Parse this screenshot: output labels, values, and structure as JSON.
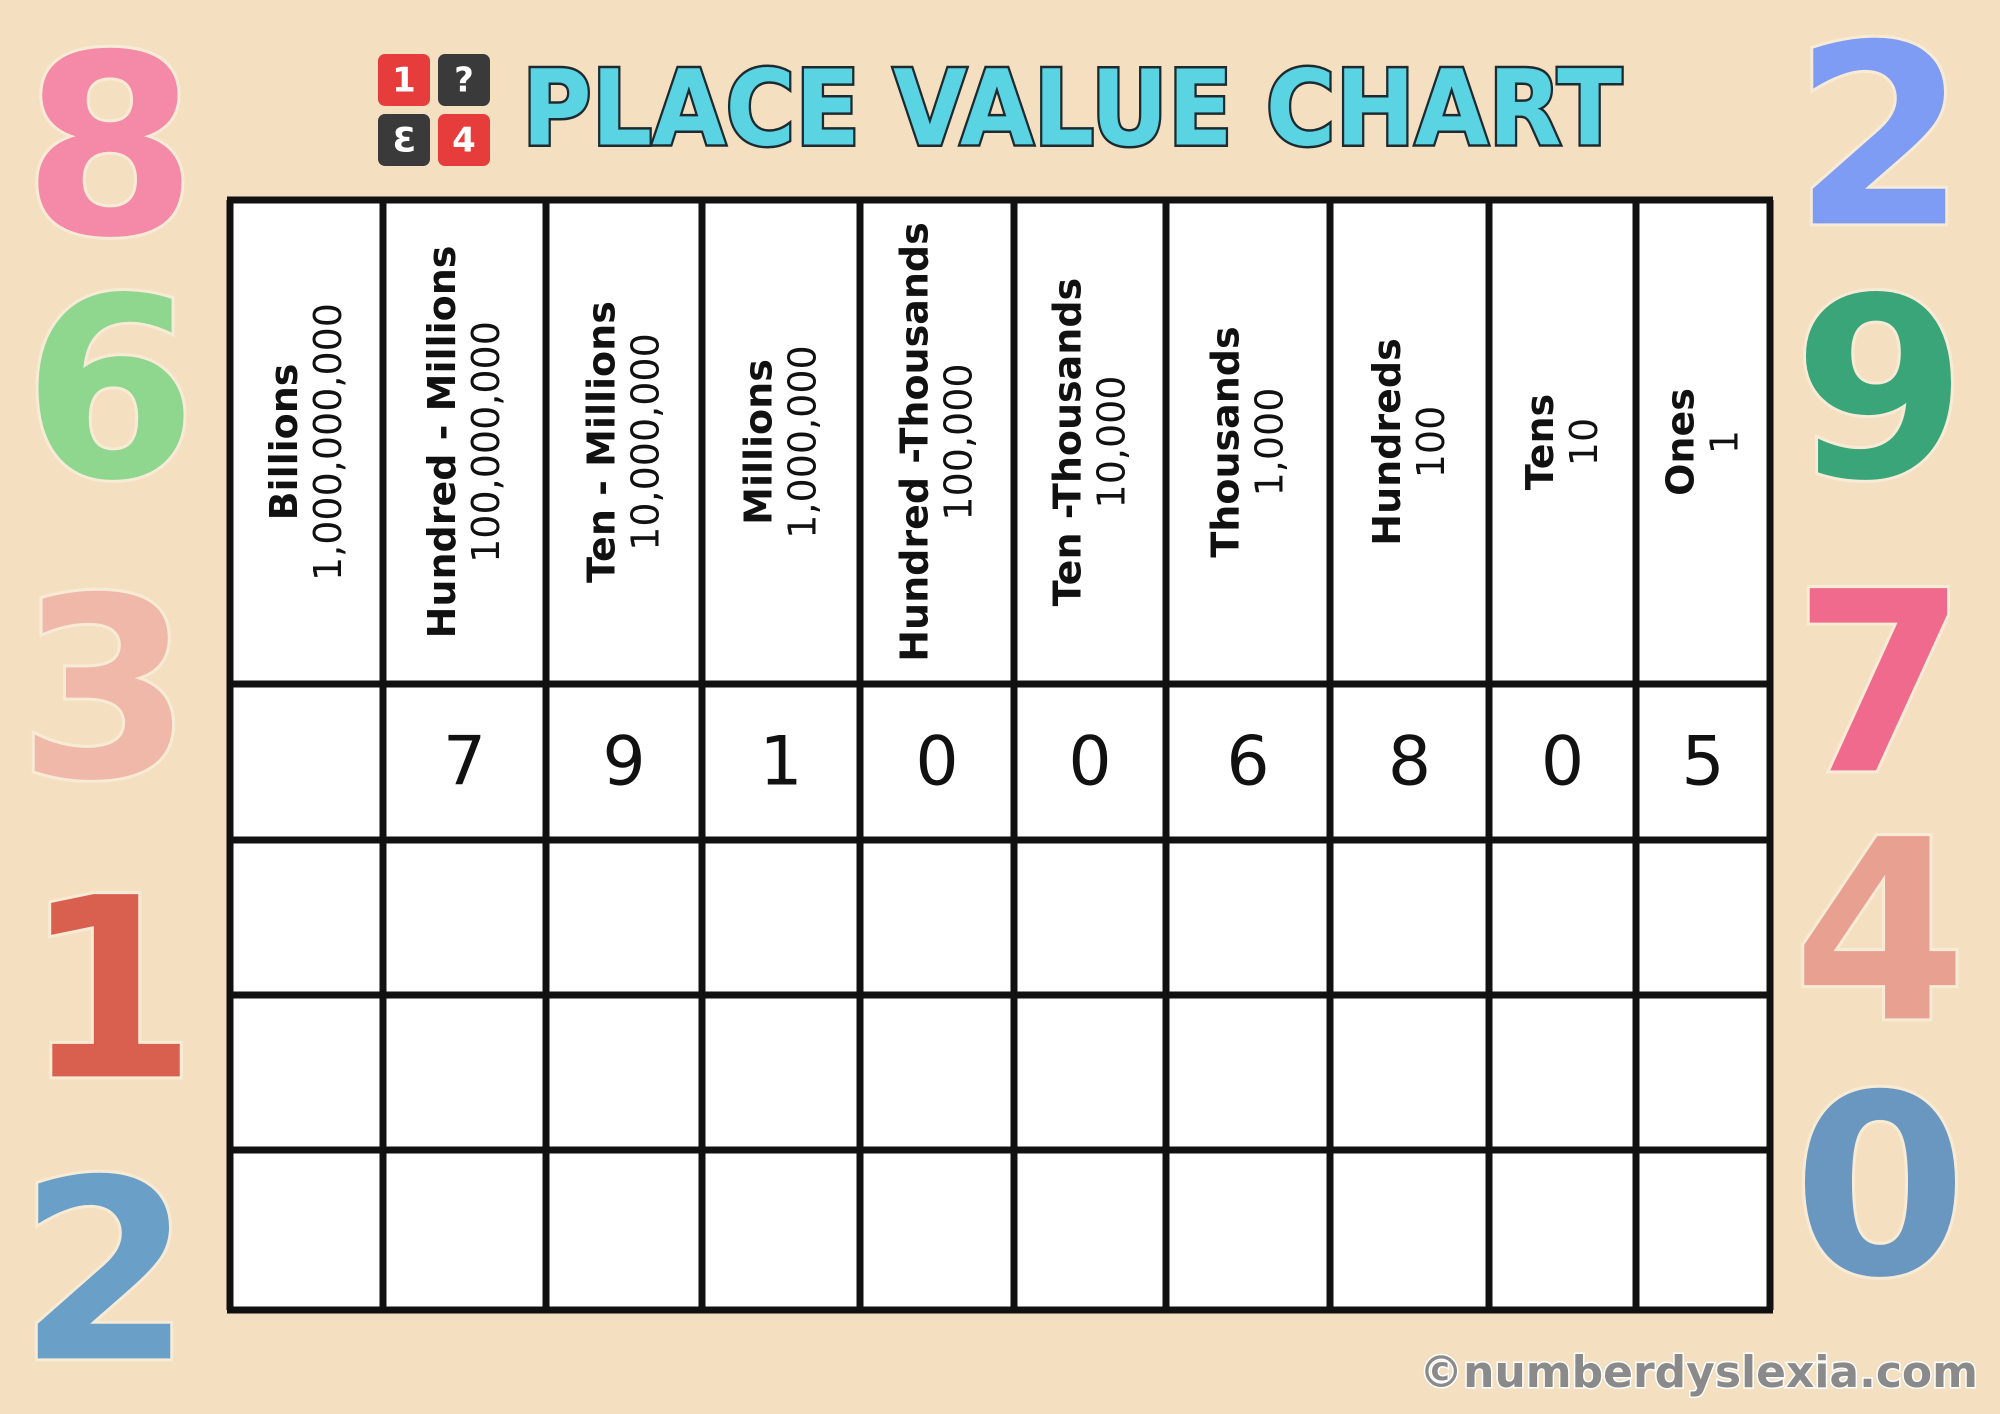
{
  "header": {
    "title": "PLACE VALUE CHART",
    "logo": [
      "1",
      "?",
      "3",
      "4"
    ]
  },
  "table": {
    "columns": [
      {
        "name": "Billions",
        "value": "1,000,000,000"
      },
      {
        "name": "Hundred - Millions",
        "value": "100,000,000"
      },
      {
        "name": "Ten - Millions",
        "value": "10,000,000"
      },
      {
        "name": "Millions",
        "value": "1,000,000"
      },
      {
        "name": "Hundred -Thousands",
        "value": "100,000"
      },
      {
        "name": "Ten -Thousands",
        "value": "10,000"
      },
      {
        "name": "Thousands",
        "value": "1,000"
      },
      {
        "name": "Hundreds",
        "value": "100"
      },
      {
        "name": "Tens",
        "value": "10"
      },
      {
        "name": "Ones",
        "value": "1"
      }
    ],
    "digits": [
      null,
      7,
      9,
      1,
      0,
      0,
      6,
      8,
      0,
      5
    ]
  },
  "decorations": {
    "left": [
      "8",
      "6",
      "3",
      "1",
      "2"
    ],
    "right": [
      "2",
      "9",
      "7",
      "4",
      "0"
    ]
  },
  "watermark": "©numberdyslexia.com"
}
